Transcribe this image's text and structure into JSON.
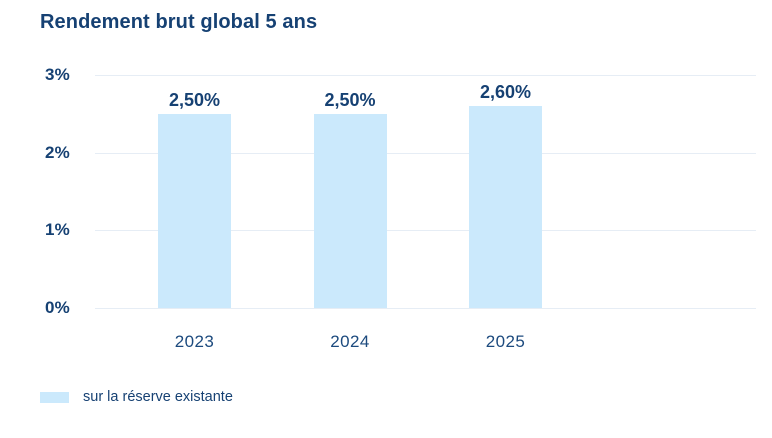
{
  "chart": {
    "title": "Rendement brut global 5 ans",
    "legend": [
      "sur la réserve existante"
    ]
  },
  "chart_data": {
    "type": "bar",
    "title": "Rendement brut global 5 ans",
    "categories": [
      "2023",
      "2024",
      "2025"
    ],
    "values": [
      2.5,
      2.5,
      2.6
    ],
    "bar_labels": [
      "2,50%",
      "2,50%",
      "2,60%"
    ],
    "ytick_values": [
      0,
      1,
      2,
      3
    ],
    "ytick_labels": [
      "0%",
      "1%",
      "2%",
      "3%"
    ],
    "ylim": [
      0,
      3
    ],
    "xlabel": "",
    "ylabel": "",
    "grid": "horizontal",
    "legend_position": "bottom-left",
    "legend_entries": [
      "sur la réserve existante"
    ],
    "colors": {
      "bar_fill": "#cbe9fc",
      "gridline": "#e6edf5",
      "text_navy": "#164173"
    }
  }
}
